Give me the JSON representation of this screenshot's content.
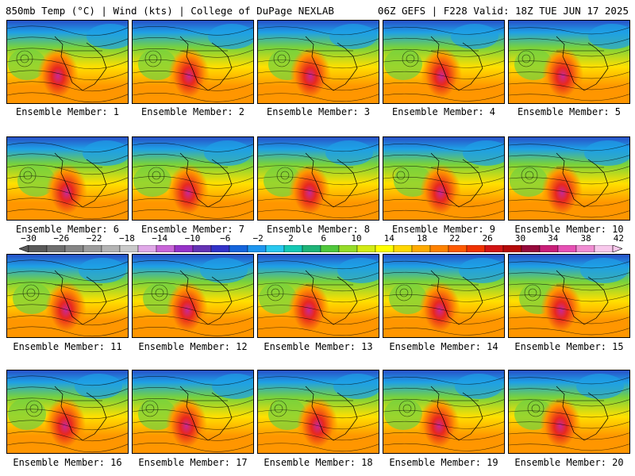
{
  "header": {
    "left": "850mb Temp (°C) | Wind (kts) | College of DuPage NEXLAB",
    "right": "06Z GEFS | F228 Valid: 18Z TUE JUN 17 2025"
  },
  "members": [
    "Ensemble Member: 1",
    "Ensemble Member: 2",
    "Ensemble Member: 3",
    "Ensemble Member: 4",
    "Ensemble Member: 5",
    "Ensemble Member: 6",
    "Ensemble Member: 7",
    "Ensemble Member: 8",
    "Ensemble Member: 9",
    "Ensemble Member: 10",
    "Ensemble Member: 11",
    "Ensemble Member: 12",
    "Ensemble Member: 13",
    "Ensemble Member: 14",
    "Ensemble Member: 15",
    "Ensemble Member: 16",
    "Ensemble Member: 17",
    "Ensemble Member: 18",
    "Ensemble Member: 19",
    "Ensemble Member: 20"
  ],
  "colorbar": {
    "labels": [
      "−30",
      "−26",
      "−22",
      "−18",
      "−14",
      "−10",
      "−6",
      "−2",
      "2",
      "6",
      "10",
      "14",
      "18",
      "22",
      "26",
      "30",
      "34",
      "38",
      "42"
    ],
    "colors": [
      "#595959",
      "#6e6e6e",
      "#858585",
      "#9c9c9c",
      "#b3b3b3",
      "#c9c9c9",
      "#e0a8e8",
      "#c864d8",
      "#9632c8",
      "#6432b4",
      "#3232c8",
      "#1464dc",
      "#1e96f0",
      "#28c8f0",
      "#14c8b4",
      "#1eb478",
      "#50c83c",
      "#96dc28",
      "#d2eb14",
      "#ffff00",
      "#ffd700",
      "#ffaa00",
      "#ff8200",
      "#ff5a00",
      "#f03200",
      "#d21414",
      "#b40a0a",
      "#960a3c",
      "#c81e78",
      "#e650b4",
      "#f08cd2",
      "#f8c8ec"
    ]
  },
  "map_colors": {
    "hot": "#e8281e",
    "warm": "#ff9600",
    "mild": "#ffe000",
    "cool": "#78d23c",
    "cold": "#1ea0e6",
    "colder": "#2850c8",
    "core": "#c82896"
  }
}
